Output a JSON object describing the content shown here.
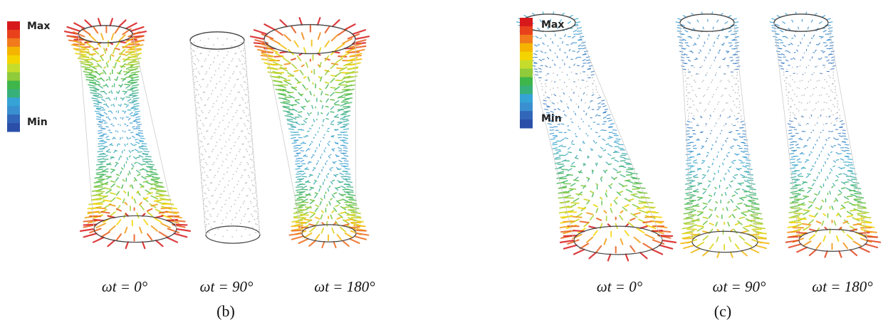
{
  "panels": [
    {
      "label": "(b)",
      "legend": {
        "max": "Max",
        "min": "Min"
      },
      "frames": [
        {
          "caption": "ωt = 0°"
        },
        {
          "caption": "ωt = 90°"
        },
        {
          "caption": "ωt = 180°"
        }
      ]
    },
    {
      "label": "(c)",
      "legend": {
        "max": "Max",
        "min": "Min"
      },
      "frames": [
        {
          "caption": "ωt = 0°"
        },
        {
          "caption": "ωt = 90°"
        },
        {
          "caption": "ωt = 180°"
        }
      ]
    }
  ]
}
